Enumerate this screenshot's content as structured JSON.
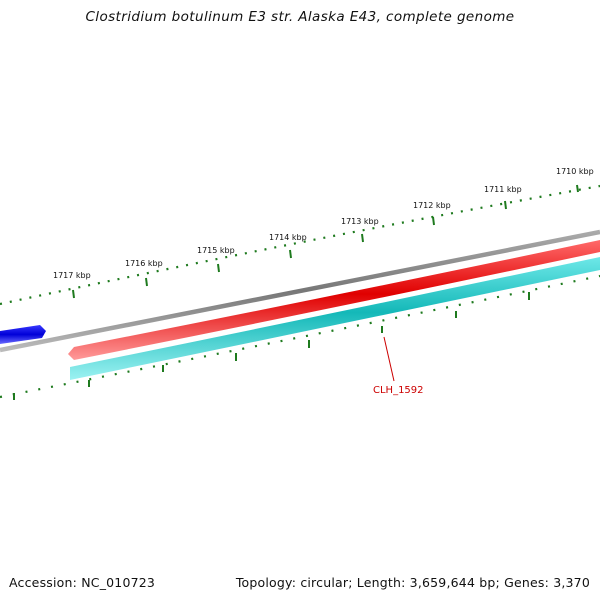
{
  "header": {
    "title": "Clostridium botulinum E3 str. Alaska E43, complete genome"
  },
  "footer": {
    "accession": "Accession: NC_010723",
    "summary": "Topology: circular; Length: 3,659,644 bp; Genes: 3,370"
  },
  "map": {
    "kbp_labels": [
      "1710 kbp",
      "1711 kbp",
      "1712 kbp",
      "1713 kbp",
      "1714 kbp",
      "1715 kbp",
      "1716 kbp",
      "1717 kbp"
    ],
    "gene_labels": [
      {
        "label": "CLH_1592",
        "color": "#cc0000"
      }
    ],
    "colors": {
      "ruler": "#1e7a1e",
      "backbone": "#7a7a7a",
      "forward_feature": "#e60000",
      "blue_feature": "#0000e6",
      "reverse_feature": "#1cc4c4",
      "label_line": "#cc0000"
    }
  }
}
